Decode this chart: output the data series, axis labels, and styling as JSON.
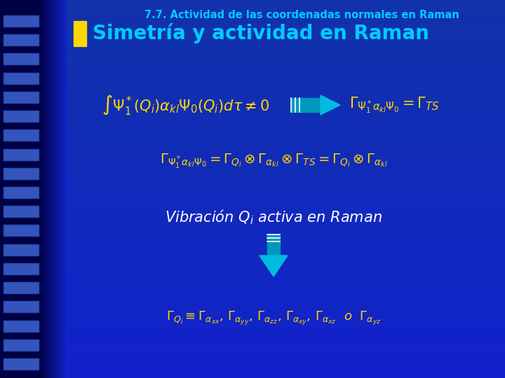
{
  "title": "7.7. Actividad de las coordenadas normales en Raman",
  "title_color": "#00CCFF",
  "title_fontsize": 10.5,
  "heading": "Simetría y actividad en Raman",
  "heading_color": "#00CCFF",
  "heading_fontsize": 20,
  "heading_bullet_color": "#FFD700",
  "eq1_color": "#FFD700",
  "eq1_fontsize": 15,
  "eq2_color": "#FFD700",
  "eq2_fontsize": 15,
  "eq3_color": "#FFD700",
  "eq3_fontsize": 14,
  "vibration_color": "#ffffff",
  "vibration_fontsize": 15,
  "eq4_color": "#FFD700",
  "eq4_fontsize": 13,
  "arrow_color": "#00CCEE",
  "down_arrow_color": "#00BBEE",
  "bg_main": "#1133CC",
  "bg_left_dark": "#000033",
  "bg_right": "#2244DD",
  "strip_color": "#3355CC"
}
